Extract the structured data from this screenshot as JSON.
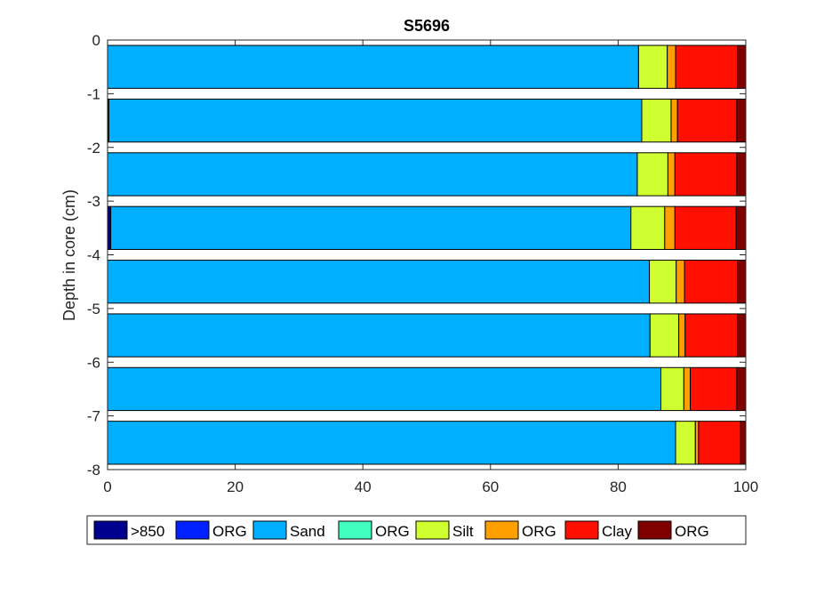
{
  "chart_data": {
    "type": "bar",
    "orientation": "horizontal",
    "stacked": true,
    "title": "S5696",
    "xlabel": "",
    "ylabel": "Depth in core (cm)",
    "xlim": [
      0,
      100
    ],
    "ylim": [
      -8,
      0
    ],
    "xticks": [
      "0",
      "20",
      "40",
      "60",
      "80",
      "100"
    ],
    "yticks": [
      "0",
      "-1",
      "-2",
      "-3",
      "-4",
      "-5",
      "-6",
      "-7",
      "-8"
    ],
    "categories": [
      -0.5,
      -1.5,
      -2.5,
      -3.5,
      -4.5,
      -5.5,
      -6.5,
      -7.5
    ],
    "series": [
      {
        "name": ">850",
        "color": "#00008f",
        "values": [
          0,
          0.2,
          0,
          0.5,
          0,
          0,
          0,
          0
        ]
      },
      {
        "name": "ORG",
        "color": "#0020ff",
        "values": [
          0,
          0,
          0,
          0,
          0,
          0,
          0,
          0
        ]
      },
      {
        "name": "Sand",
        "color": "#00afff",
        "values": [
          83.2,
          83.5,
          83.0,
          81.5,
          84.9,
          85.0,
          86.7,
          89.0
        ]
      },
      {
        "name": "ORG",
        "color": "#40ffbf",
        "values": [
          0,
          0,
          0,
          0,
          0,
          0,
          0,
          0
        ]
      },
      {
        "name": "Silt",
        "color": "#cfff30",
        "values": [
          4.5,
          4.6,
          4.8,
          5.3,
          4.2,
          4.5,
          3.6,
          3.1
        ]
      },
      {
        "name": "ORG",
        "color": "#ff9f00",
        "values": [
          1.3,
          1.0,
          1.1,
          1.6,
          1.3,
          1.0,
          1.0,
          0.5
        ]
      },
      {
        "name": "Clay",
        "color": "#ff1000",
        "values": [
          9.7,
          9.3,
          9.7,
          9.6,
          8.3,
          8.2,
          7.3,
          6.6
        ]
      },
      {
        "name": "ORG",
        "color": "#800000",
        "values": [
          1.3,
          1.4,
          1.4,
          1.5,
          1.3,
          1.3,
          1.4,
          0.8
        ]
      }
    ],
    "grid": false,
    "legend_placement": "bottom, horizontal"
  }
}
